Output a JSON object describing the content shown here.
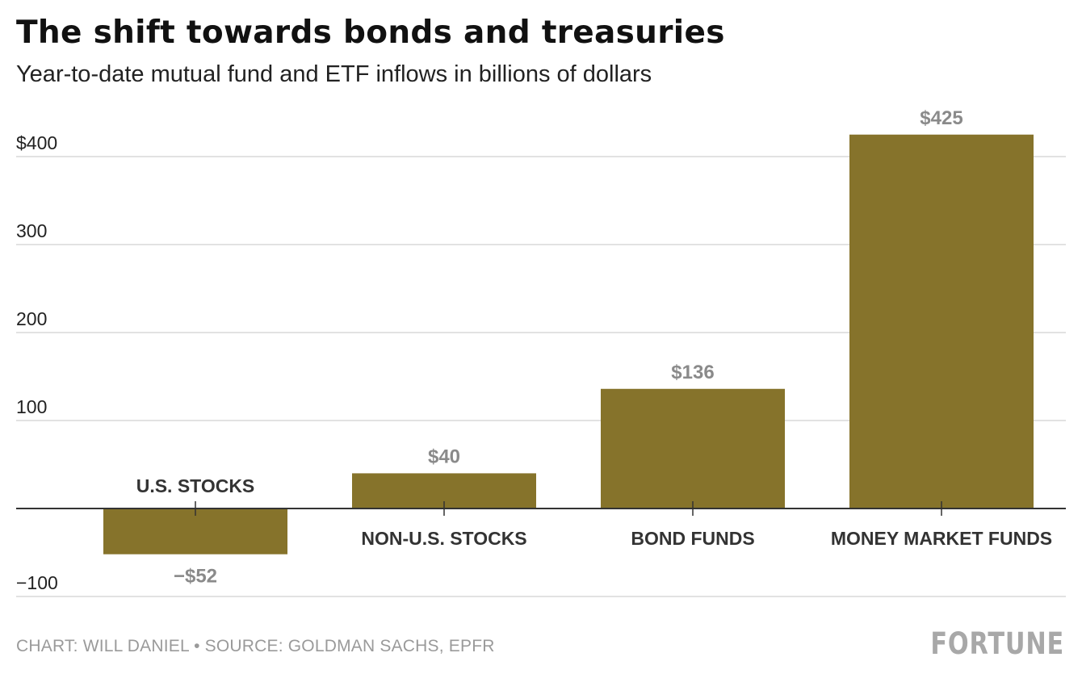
{
  "title": "The shift towards bonds and treasuries",
  "subtitle": "Year-to-date mutual fund and ETF inflows in billions of dollars",
  "footer": {
    "credit": "CHART: WILL DANIEL • SOURCE: GOLDMAN SACHS, EPFR",
    "logo": "FORTUNE"
  },
  "colors": {
    "bar": "#86732b",
    "grid": "#d9d9d9",
    "axis": "#333333",
    "value_label": "#8a8a8a",
    "category_label": "#333333"
  },
  "chart_data": {
    "type": "bar",
    "categories": [
      "U.S. STOCKS",
      "NON-U.S. STOCKS",
      "BOND FUNDS",
      "MONEY MARKET FUNDS"
    ],
    "values": [
      -52,
      40,
      136,
      425
    ],
    "value_labels": [
      "−$52",
      "$40",
      "$136",
      "$425"
    ],
    "ylim": [
      -100,
      400
    ],
    "yticks": [
      -100,
      100,
      200,
      300,
      400
    ],
    "ytick_labels": [
      "−100",
      "100",
      "200",
      "300",
      "$400"
    ],
    "grid": true,
    "legend": "none",
    "xlabel": "",
    "ylabel": ""
  }
}
